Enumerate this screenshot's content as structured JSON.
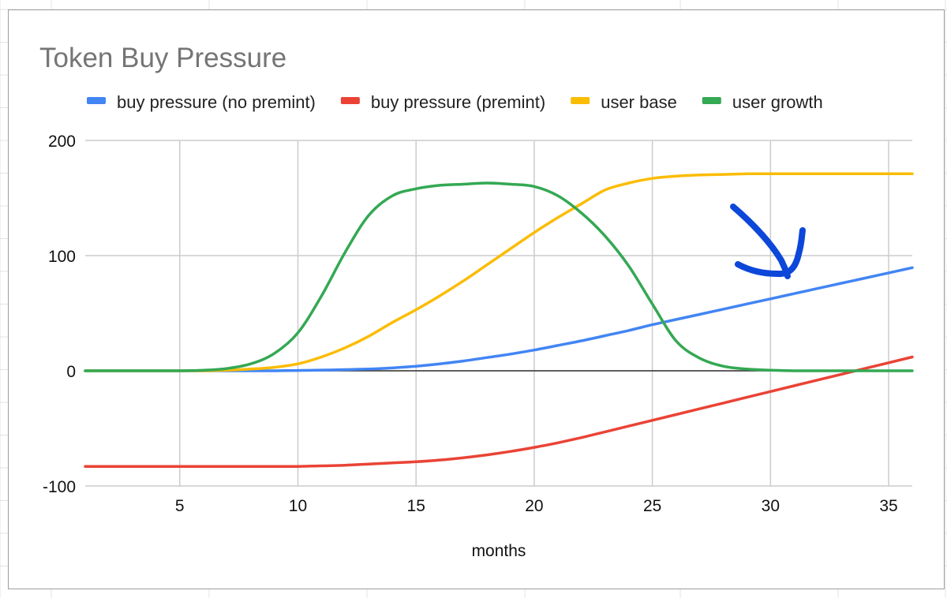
{
  "chart_data": {
    "type": "line",
    "title": "Token Buy Pressure",
    "xlabel": "months",
    "ylabel": "",
    "xlim": [
      1,
      36
    ],
    "ylim": [
      -100,
      200
    ],
    "x_ticks": [
      5,
      10,
      15,
      20,
      25,
      30,
      35
    ],
    "y_ticks": [
      -100,
      0,
      100,
      200
    ],
    "grid": true,
    "legend_position": "top",
    "x": [
      1,
      2,
      3,
      4,
      5,
      6,
      7,
      8,
      9,
      10,
      11,
      12,
      13,
      14,
      15,
      16,
      17,
      18,
      19,
      20,
      21,
      22,
      23,
      24,
      25,
      26,
      27,
      28,
      29,
      30,
      31,
      32,
      33,
      34,
      35,
      36
    ],
    "series": [
      {
        "name": "buy pressure (no premint)",
        "color": "#4285f4",
        "values": [
          0,
          0,
          0,
          0,
          0,
          0,
          0,
          0,
          0,
          0.3,
          0.6,
          1,
          1.5,
          2.5,
          4,
          6,
          8.5,
          11.5,
          14.5,
          18,
          22,
          26,
          30.5,
          35,
          40,
          44.5,
          49,
          53.5,
          58,
          62.5,
          67,
          71.5,
          76,
          80.5,
          85,
          89.5
        ]
      },
      {
        "name": "buy pressure (premint)",
        "color": "#ea4335",
        "values": [
          -83,
          -83,
          -83,
          -83,
          -83,
          -83,
          -83,
          -83,
          -83,
          -83,
          -82.5,
          -82,
          -81,
          -80,
          -79,
          -77.5,
          -75.5,
          -73,
          -70,
          -66.5,
          -62.5,
          -58,
          -53,
          -48,
          -43,
          -38,
          -33,
          -28,
          -23,
          -18,
          -13,
          -8,
          -3,
          2,
          7,
          12
        ]
      },
      {
        "name": "user base",
        "color": "#fbbc04",
        "values": [
          0,
          0,
          0,
          0,
          0,
          0,
          0.5,
          1.5,
          3,
          6,
          12,
          20,
          30,
          42,
          53,
          65,
          78,
          92,
          106,
          120,
          133,
          145,
          157,
          163,
          167,
          169,
          170,
          170.5,
          171,
          171,
          171,
          171,
          171,
          171,
          171,
          171
        ]
      },
      {
        "name": "user growth",
        "color": "#34a853",
        "values": [
          0,
          0,
          0,
          0,
          0,
          0.5,
          2,
          6,
          15,
          33,
          65,
          103,
          135,
          152,
          158,
          161,
          162,
          163,
          162,
          160,
          152,
          137,
          117,
          91,
          58,
          26,
          11,
          4,
          1.5,
          0.5,
          0,
          0,
          0,
          0,
          0,
          0
        ]
      }
    ]
  },
  "annotation": {
    "type": "hand-drawn-arrow",
    "color": "#0d47d9"
  }
}
